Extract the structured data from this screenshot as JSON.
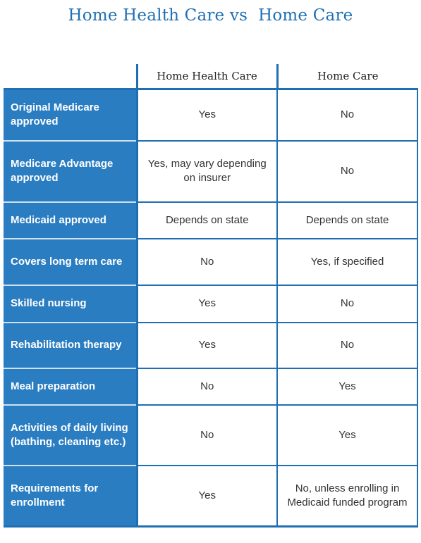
{
  "title": "Home Health Care vs  Home Care",
  "columns": {
    "home_health_care": "Home Health Care",
    "home_care": "Home Care"
  },
  "rows": [
    {
      "label": "Original Medicare approved",
      "home_health_care": "Yes",
      "home_care": "No"
    },
    {
      "label": "Medicare Advantage approved",
      "home_health_care": "Yes, may vary depending on insurer",
      "home_care": "No"
    },
    {
      "label": "Medicaid approved",
      "home_health_care": "Depends on state",
      "home_care": "Depends on state"
    },
    {
      "label": "Covers long term care",
      "home_health_care": "No",
      "home_care": "Yes, if specified"
    },
    {
      "label": "Skilled nursing",
      "home_health_care": "Yes",
      "home_care": "No"
    },
    {
      "label": "Rehabilitation therapy",
      "home_health_care": "Yes",
      "home_care": "No"
    },
    {
      "label": "Meal preparation",
      "home_health_care": "No",
      "home_care": "Yes"
    },
    {
      "label": "Activities of daily living (bathing, cleaning etc.)",
      "home_health_care": "No",
      "home_care": "Yes"
    },
    {
      "label": "Requirements for enrollment",
      "home_health_care": "Yes",
      "home_care": "No, unless enrolling in Medicaid funded program"
    }
  ],
  "colors": {
    "accent": "#1f6fb2",
    "label_bg": "#2b7dc2",
    "label_text": "#ffffff"
  }
}
